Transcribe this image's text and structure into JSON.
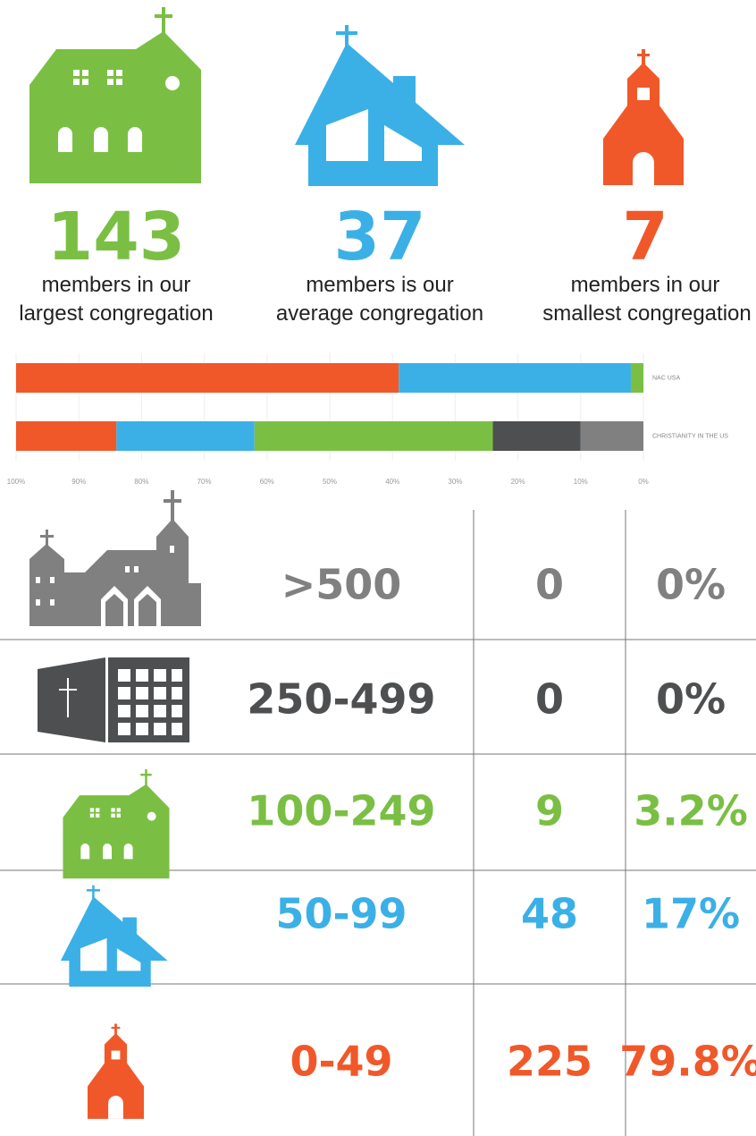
{
  "stats": [
    {
      "value": "143",
      "lines": [
        "members in our",
        "largest congregation"
      ]
    },
    {
      "value": "37",
      "lines": [
        "members is our",
        "average congregation"
      ]
    },
    {
      "value": "7",
      "lines": [
        "members in our",
        "smallest congregation"
      ]
    }
  ],
  "chart_data": {
    "type": "stacked-bar",
    "categories": [
      "NAC USA",
      "CHRISTIANITY IN THE US"
    ],
    "series": [
      {
        "color": "#f0582a",
        "values": [
          61,
          16
        ]
      },
      {
        "color": "#3bb0e6",
        "values": [
          37,
          22
        ]
      },
      {
        "color": "#7abf43",
        "values": [
          2,
          38
        ]
      },
      {
        "color": "#4d4f51",
        "values": [
          0,
          14
        ]
      },
      {
        "color": "#808080",
        "values": [
          0,
          10
        ]
      }
    ],
    "xlim": [
      100,
      0
    ],
    "xticks": [
      {
        "value": 100,
        "label": "100%"
      },
      {
        "value": 90,
        "label": "90%"
      },
      {
        "value": 80,
        "label": "80%"
      },
      {
        "value": 70,
        "label": "70%"
      },
      {
        "value": 60,
        "label": "60%"
      },
      {
        "value": 50,
        "label": "50%"
      },
      {
        "value": 40,
        "label": "40%"
      },
      {
        "value": 30,
        "label": "30%"
      },
      {
        "value": 20,
        "label": "20%"
      },
      {
        "value": 10,
        "label": "10%"
      },
      {
        "value": 0,
        "label": "0%"
      }
    ],
    "grid": true
  },
  "table": {
    "rows": [
      [
        ">500",
        "0",
        "0%"
      ],
      [
        "250-499",
        "0",
        "0%"
      ],
      [
        "100-249",
        "9",
        "3.2%"
      ],
      [
        "50-99",
        "48",
        "17%"
      ],
      [
        "0-49",
        "225",
        "79.8%"
      ]
    ]
  }
}
